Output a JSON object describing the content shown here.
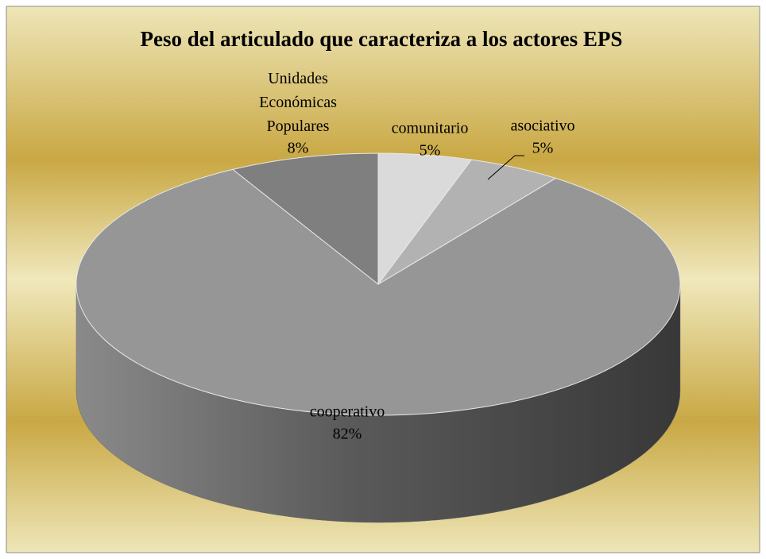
{
  "chart_data": {
    "type": "pie",
    "title": "Peso del articulado que caracteriza a los actores EPS",
    "categories": [
      "comunitario",
      "asociativo",
      "cooperativo",
      "Unidades Económicas Populares"
    ],
    "values": [
      5,
      5,
      82,
      8
    ],
    "value_labels": [
      "5%",
      "5%",
      "82%",
      "8%"
    ],
    "colors": [
      "#dadada",
      "#b2b2b2",
      "#969696",
      "#7f7f7f"
    ]
  }
}
